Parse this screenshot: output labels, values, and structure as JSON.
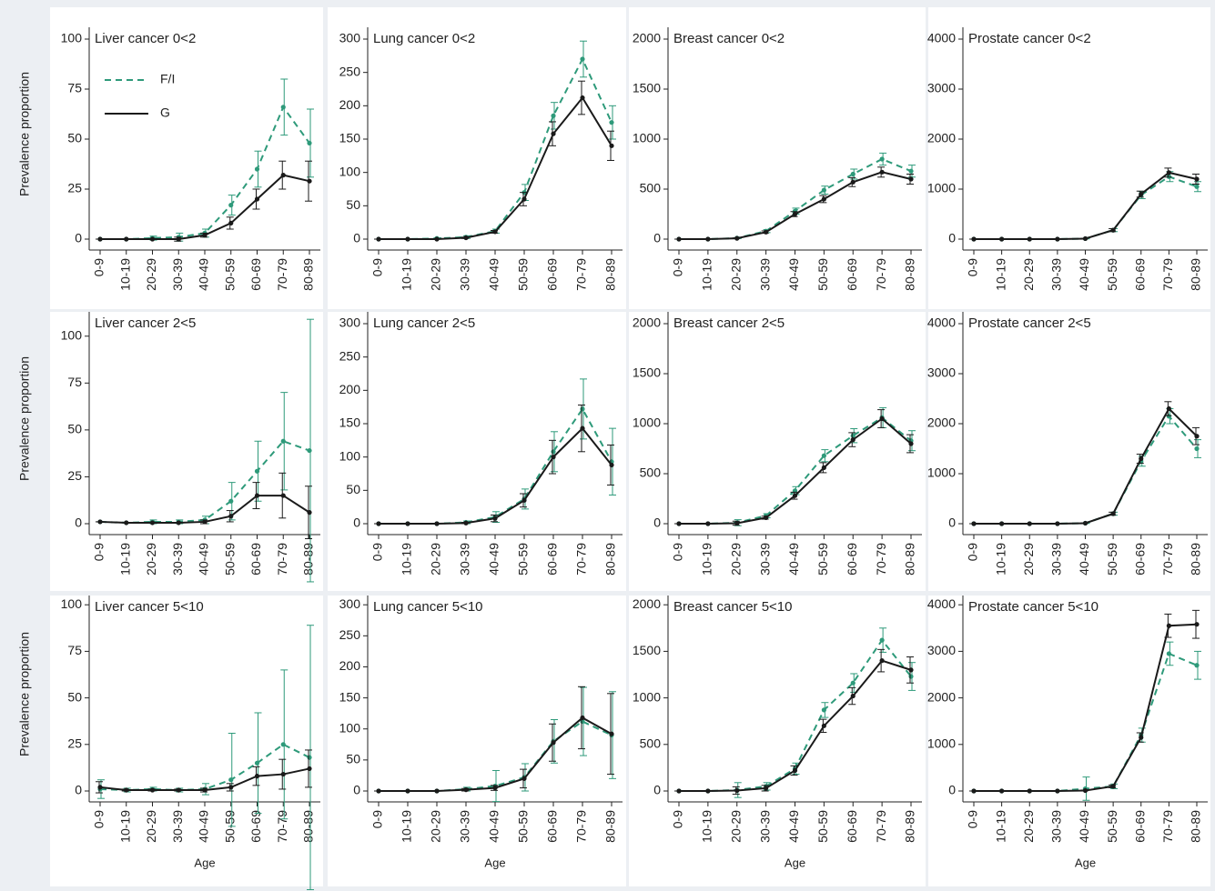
{
  "chart_data": [
    {
      "type": "line",
      "title": "Liver cancer 0<2",
      "y_label": "Prevalence proportion",
      "legend": true,
      "legend_position": "upper left",
      "categories": [
        "0-9",
        "10-19",
        "20-29",
        "30-39",
        "40-49",
        "50-59",
        "60-69",
        "70-79",
        "80-89"
      ],
      "ylim": [
        0,
        105
      ],
      "yticks": [
        0,
        25,
        50,
        75,
        100
      ],
      "series": [
        {
          "name": "F/I",
          "color": "#2e9a7a",
          "dashed": true,
          "values": [
            0,
            0,
            0.5,
            1,
            3,
            17,
            35,
            66,
            48
          ],
          "errors": [
            0,
            0,
            1,
            2,
            2,
            5,
            9,
            14,
            17
          ]
        },
        {
          "name": "G",
          "color": "#1a1a1a",
          "dashed": false,
          "values": [
            0,
            0,
            0,
            0,
            2,
            8,
            20,
            32,
            29
          ],
          "errors": [
            0,
            0,
            0,
            1,
            1,
            3,
            5,
            7,
            10
          ]
        }
      ]
    },
    {
      "type": "line",
      "title": "Lung cancer 0<2",
      "categories": [
        "0-9",
        "10-19",
        "20-29",
        "30-39",
        "40-49",
        "50-59",
        "60-69",
        "70-79",
        "80-89"
      ],
      "ylim": [
        0,
        315
      ],
      "yticks": [
        0,
        50,
        100,
        150,
        200,
        250,
        300
      ],
      "series": [
        {
          "color": "#2e9a7a",
          "dashed": true,
          "values": [
            0,
            0,
            1,
            3,
            12,
            70,
            185,
            270,
            175
          ],
          "errors": [
            0,
            0,
            1,
            2,
            3,
            12,
            20,
            27,
            25
          ]
        },
        {
          "color": "#1a1a1a",
          "dashed": false,
          "values": [
            0,
            0,
            0,
            2,
            11,
            60,
            158,
            212,
            140
          ],
          "errors": [
            0,
            0,
            0,
            1,
            2,
            10,
            18,
            25,
            22
          ]
        }
      ]
    },
    {
      "type": "line",
      "title": "Breast cancer 0<2",
      "categories": [
        "0-9",
        "10-19",
        "20-29",
        "30-39",
        "40-49",
        "50-59",
        "60-69",
        "70-79",
        "80-89"
      ],
      "ylim": [
        0,
        2100
      ],
      "yticks": [
        0,
        500,
        1000,
        1500,
        2000
      ],
      "series": [
        {
          "color": "#2e9a7a",
          "dashed": true,
          "values": [
            0,
            0,
            10,
            80,
            280,
            490,
            650,
            800,
            680
          ],
          "errors": [
            0,
            0,
            5,
            15,
            30,
            40,
            50,
            60,
            60
          ]
        },
        {
          "color": "#1a1a1a",
          "dashed": false,
          "values": [
            0,
            0,
            8,
            70,
            250,
            400,
            570,
            670,
            600
          ],
          "errors": [
            0,
            0,
            4,
            12,
            25,
            35,
            45,
            50,
            50
          ]
        }
      ]
    },
    {
      "type": "line",
      "title": "Prostate cancer 0<2",
      "categories": [
        "0-9",
        "10-19",
        "20-29",
        "30-39",
        "40-49",
        "50-59",
        "60-69",
        "70-79",
        "80-89"
      ],
      "ylim": [
        0,
        4200
      ],
      "yticks": [
        0,
        1000,
        2000,
        3000,
        4000
      ],
      "series": [
        {
          "color": "#2e9a7a",
          "dashed": true,
          "values": [
            0,
            0,
            0,
            0,
            10,
            180,
            880,
            1250,
            1050
          ],
          "errors": [
            0,
            0,
            0,
            0,
            5,
            30,
            70,
            100,
            100
          ]
        },
        {
          "color": "#1a1a1a",
          "dashed": false,
          "values": [
            0,
            0,
            0,
            0,
            10,
            180,
            900,
            1330,
            1200
          ],
          "errors": [
            0,
            0,
            0,
            0,
            5,
            30,
            60,
            90,
            100
          ]
        }
      ]
    },
    {
      "type": "line",
      "title": "Liver cancer 2<5",
      "y_label": "Prevalence proportion",
      "categories": [
        "0-9",
        "10-19",
        "20-29",
        "30-39",
        "40-49",
        "50-59",
        "60-69",
        "70-79",
        "80-89"
      ],
      "ylim": [
        0,
        112
      ],
      "yticks": [
        0,
        25,
        50,
        75,
        100
      ],
      "series": [
        {
          "color": "#2e9a7a",
          "dashed": true,
          "values": [
            1,
            0.5,
            1,
            1,
            2,
            12,
            28,
            44,
            39
          ],
          "errors": [
            0,
            0,
            1,
            1,
            2,
            10,
            16,
            26,
            70
          ]
        },
        {
          "color": "#1a1a1a",
          "dashed": false,
          "values": [
            1,
            0.5,
            0.5,
            0.5,
            1,
            4,
            15,
            15,
            6
          ],
          "errors": [
            0,
            0,
            0,
            0,
            1,
            3,
            7,
            12,
            14
          ]
        }
      ]
    },
    {
      "type": "line",
      "title": "Lung cancer 2<5",
      "categories": [
        "0-9",
        "10-19",
        "20-29",
        "30-39",
        "40-49",
        "50-59",
        "60-69",
        "70-79",
        "80-89"
      ],
      "ylim": [
        0,
        315
      ],
      "yticks": [
        0,
        50,
        100,
        150,
        200,
        250,
        300
      ],
      "series": [
        {
          "color": "#2e9a7a",
          "dashed": true,
          "values": [
            0,
            0,
            0,
            2,
            10,
            37,
            108,
            172,
            93
          ],
          "errors": [
            0,
            0,
            0,
            2,
            8,
            15,
            30,
            45,
            50
          ]
        },
        {
          "color": "#1a1a1a",
          "dashed": false,
          "values": [
            0,
            0,
            0,
            1,
            8,
            35,
            100,
            143,
            88
          ],
          "errors": [
            0,
            0,
            0,
            1,
            5,
            10,
            25,
            35,
            30
          ]
        }
      ]
    },
    {
      "type": "line",
      "title": "Breast cancer 2<5",
      "categories": [
        "0-9",
        "10-19",
        "20-29",
        "30-39",
        "40-49",
        "50-59",
        "60-69",
        "70-79",
        "80-89"
      ],
      "ylim": [
        0,
        2100
      ],
      "yticks": [
        0,
        500,
        1000,
        1500,
        2000
      ],
      "series": [
        {
          "color": "#2e9a7a",
          "dashed": true,
          "values": [
            0,
            0,
            10,
            80,
            330,
            680,
            880,
            1060,
            830
          ],
          "errors": [
            0,
            0,
            30,
            20,
            40,
            60,
            70,
            100,
            100
          ]
        },
        {
          "color": "#1a1a1a",
          "dashed": false,
          "values": [
            0,
            0,
            5,
            60,
            280,
            560,
            840,
            1050,
            800
          ],
          "errors": [
            0,
            0,
            20,
            15,
            35,
            50,
            70,
            90,
            90
          ]
        }
      ]
    },
    {
      "type": "line",
      "title": "Prostate cancer 2<5",
      "categories": [
        "0-9",
        "10-19",
        "20-29",
        "30-39",
        "40-49",
        "50-59",
        "60-69",
        "70-79",
        "80-89"
      ],
      "ylim": [
        0,
        4200
      ],
      "yticks": [
        0,
        1000,
        2000,
        3000,
        4000
      ],
      "series": [
        {
          "color": "#2e9a7a",
          "dashed": true,
          "values": [
            0,
            0,
            0,
            0,
            10,
            200,
            1250,
            2150,
            1500
          ],
          "errors": [
            0,
            0,
            0,
            0,
            5,
            30,
            100,
            150,
            180
          ]
        },
        {
          "color": "#1a1a1a",
          "dashed": false,
          "values": [
            0,
            0,
            0,
            0,
            10,
            200,
            1300,
            2300,
            1750
          ],
          "errors": [
            0,
            0,
            0,
            0,
            5,
            30,
            90,
            140,
            170
          ]
        }
      ]
    },
    {
      "type": "line",
      "title": "Liver cancer 5<10",
      "y_label": "Prevalence proportion",
      "x_label": "Age",
      "categories": [
        "0-9",
        "10-19",
        "20-29",
        "30-39",
        "40-49",
        "50-59",
        "60-69",
        "70-79",
        "80-89"
      ],
      "ylim": [
        0,
        104
      ],
      "yticks": [
        0,
        25,
        50,
        75,
        100
      ],
      "series": [
        {
          "color": "#2e9a7a",
          "dashed": true,
          "values": [
            1,
            0.5,
            1,
            0.5,
            1,
            6,
            15,
            25,
            18
          ],
          "errors": [
            5,
            1,
            1,
            1,
            3,
            25,
            27,
            40,
            71
          ]
        },
        {
          "color": "#1a1a1a",
          "dashed": false,
          "values": [
            2,
            0.5,
            0.5,
            0.5,
            0.5,
            2,
            8,
            9,
            12
          ],
          "errors": [
            3,
            0.5,
            0.5,
            0.5,
            1,
            2,
            5,
            8,
            10
          ]
        }
      ]
    },
    {
      "type": "line",
      "title": "Lung cancer 5<10",
      "x_label": "Age",
      "categories": [
        "0-9",
        "10-19",
        "20-29",
        "30-39",
        "40-49",
        "50-59",
        "60-69",
        "70-79",
        "80-89"
      ],
      "ylim": [
        0,
        312
      ],
      "yticks": [
        0,
        50,
        100,
        150,
        200,
        250,
        300
      ],
      "series": [
        {
          "color": "#2e9a7a",
          "dashed": true,
          "values": [
            0,
            0,
            0,
            3,
            8,
            22,
            80,
            112,
            90
          ],
          "errors": [
            0,
            0,
            0,
            3,
            25,
            22,
            35,
            55,
            70
          ]
        },
        {
          "color": "#1a1a1a",
          "dashed": false,
          "values": [
            0,
            0,
            0,
            2,
            5,
            20,
            78,
            118,
            92
          ],
          "errors": [
            0,
            0,
            0,
            2,
            4,
            15,
            30,
            50,
            65
          ]
        }
      ]
    },
    {
      "type": "line",
      "title": "Breast cancer 5<10",
      "x_label": "Age",
      "categories": [
        "0-9",
        "10-19",
        "20-29",
        "30-39",
        "40-49",
        "50-59",
        "60-69",
        "70-79",
        "80-89"
      ],
      "ylim": [
        0,
        2080
      ],
      "yticks": [
        0,
        500,
        1000,
        1500,
        2000
      ],
      "series": [
        {
          "color": "#2e9a7a",
          "dashed": true,
          "values": [
            0,
            0,
            10,
            50,
            240,
            870,
            1160,
            1620,
            1230
          ],
          "errors": [
            0,
            0,
            80,
            40,
            60,
            80,
            100,
            130,
            150
          ]
        },
        {
          "color": "#1a1a1a",
          "dashed": false,
          "values": [
            0,
            0,
            5,
            30,
            220,
            700,
            1020,
            1400,
            1300
          ],
          "errors": [
            0,
            0,
            40,
            30,
            50,
            70,
            90,
            120,
            140
          ]
        }
      ]
    },
    {
      "type": "line",
      "title": "Prostate cancer 5<10",
      "x_label": "Age",
      "categories": [
        "0-9",
        "10-19",
        "20-29",
        "30-39",
        "40-49",
        "50-59",
        "60-69",
        "70-79",
        "80-89"
      ],
      "ylim": [
        0,
        4160
      ],
      "yticks": [
        0,
        1000,
        2000,
        3000,
        4000
      ],
      "series": [
        {
          "color": "#2e9a7a",
          "dashed": true,
          "values": [
            0,
            0,
            0,
            0,
            50,
            100,
            1200,
            2950,
            2700
          ],
          "errors": [
            0,
            0,
            0,
            0,
            250,
            50,
            150,
            250,
            300
          ]
        },
        {
          "color": "#1a1a1a",
          "dashed": false,
          "values": [
            0,
            0,
            0,
            0,
            10,
            100,
            1150,
            3550,
            3580
          ],
          "errors": [
            0,
            0,
            0,
            0,
            10,
            30,
            100,
            250,
            300
          ]
        }
      ]
    }
  ]
}
